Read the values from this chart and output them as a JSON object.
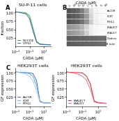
{
  "panel_A": {
    "title": "SU-P-11 cells",
    "xlabel": "CADA (μM)",
    "ylabel": "fraction",
    "xvals": [
      0.001,
      0.003,
      0.01,
      0.03,
      0.1,
      0.3,
      1,
      3,
      10,
      100
    ],
    "lines": [
      {
        "label": "SU(CD4)",
        "color": "#3a9e3a",
        "y": [
          1.02,
          1.01,
          1.0,
          0.99,
          0.9,
          0.55,
          0.15,
          0.07,
          0.06,
          0.05
        ]
      },
      {
        "label": "CTP63",
        "color": "#4169b0",
        "y": [
          1.02,
          1.01,
          0.98,
          0.96,
          0.82,
          0.45,
          0.12,
          0.06,
          0.05,
          0.04
        ]
      }
    ],
    "ylim": [
      0,
      1.15
    ],
    "yticks": [
      0.25,
      0.5,
      0.75,
      1.0
    ]
  },
  "panel_B": {
    "title": "CADA (μM)",
    "lane_labels": [
      "0",
      "0.03",
      "0.1",
      "0.3",
      "1",
      "3",
      "10",
      "30",
      "100"
    ],
    "band_rows": [
      {
        "name": "AaCOR",
        "intensities": [
          0.8,
          0.75,
          0.7,
          0.6,
          0.4,
          0.15,
          0.05,
          0.03,
          0.02
        ]
      },
      {
        "name": "SCRT",
        "intensities": [
          0.8,
          0.75,
          0.72,
          0.65,
          0.45,
          0.2,
          0.06,
          0.03,
          0.02
        ]
      },
      {
        "name": "PTHL1",
        "intensities": [
          0.8,
          0.76,
          0.73,
          0.65,
          0.5,
          0.25,
          0.08,
          0.04,
          0.02
        ]
      },
      {
        "name": "ERALECT",
        "intensities": [
          0.5,
          0.45,
          0.42,
          0.35,
          0.2,
          0.08,
          0.03,
          0.02,
          0.01
        ]
      },
      {
        "name": "ERALICT",
        "intensities": [
          0.5,
          0.46,
          0.43,
          0.36,
          0.22,
          0.09,
          0.03,
          0.02,
          0.01
        ]
      },
      {
        "name": "Clathrin",
        "intensities": [
          0.75,
          0.74,
          0.73,
          0.72,
          0.71,
          0.7,
          0.69,
          0.68,
          0.67
        ]
      },
      {
        "name": "B actin",
        "intensities": [
          0.75,
          0.74,
          0.73,
          0.72,
          0.71,
          0.7,
          0.69,
          0.68,
          0.67
        ]
      }
    ],
    "bg_color": "#d8d8d8",
    "row_bg_color": "#e8e8e8",
    "band_color": "#1a1a1a"
  },
  "panel_CL": {
    "title": "HEK293T cells",
    "xlabel": "CADA (μM)",
    "ylabel": "GF expression",
    "xvals": [
      0.001,
      0.003,
      0.01,
      0.03,
      0.1,
      0.3,
      1,
      3,
      10,
      100
    ],
    "lines": [
      {
        "label": "AaCOR",
        "color": "#4169b0",
        "y": [
          1.02,
          1.01,
          1.0,
          1.0,
          0.99,
          0.97,
          0.75,
          0.12,
          0.07,
          0.06
        ]
      },
      {
        "label": "SCRT",
        "color": "#6ab0d4",
        "y": [
          1.02,
          1.01,
          1.0,
          0.99,
          0.96,
          0.88,
          0.6,
          0.1,
          0.06,
          0.05
        ]
      },
      {
        "label": "PTHL1",
        "color": "#a0c8e8",
        "y": [
          1.02,
          1.0,
          0.98,
          0.95,
          0.88,
          0.75,
          0.45,
          0.09,
          0.06,
          0.05
        ]
      }
    ],
    "ylim": [
      -0.05,
      1.15
    ],
    "yticks": [
      0.25,
      0.5,
      0.75,
      1.0
    ]
  },
  "panel_CR": {
    "title": "HEK293T cells",
    "xlabel": "CADA (μM)",
    "ylabel": "GF expression",
    "xvals": [
      0.001,
      0.003,
      0.01,
      0.03,
      0.1,
      0.3,
      1,
      3,
      10,
      100
    ],
    "lines": [
      {
        "label": "ERALECT",
        "color": "#c82020",
        "y": [
          1.02,
          1.01,
          1.0,
          1.0,
          0.99,
          0.9,
          0.65,
          0.12,
          0.07,
          0.05
        ]
      },
      {
        "label": "ERALICT",
        "color": "#e87090",
        "y": [
          1.02,
          1.0,
          0.98,
          0.95,
          0.88,
          0.78,
          0.48,
          0.09,
          0.06,
          0.04
        ]
      }
    ],
    "ylim": [
      -0.05,
      1.15
    ],
    "yticks": [
      0.25,
      0.5,
      0.75,
      1.0
    ]
  },
  "bg": "#ffffff",
  "lfs": 4,
  "tfs": 3.5,
  "titfs": 4.5
}
